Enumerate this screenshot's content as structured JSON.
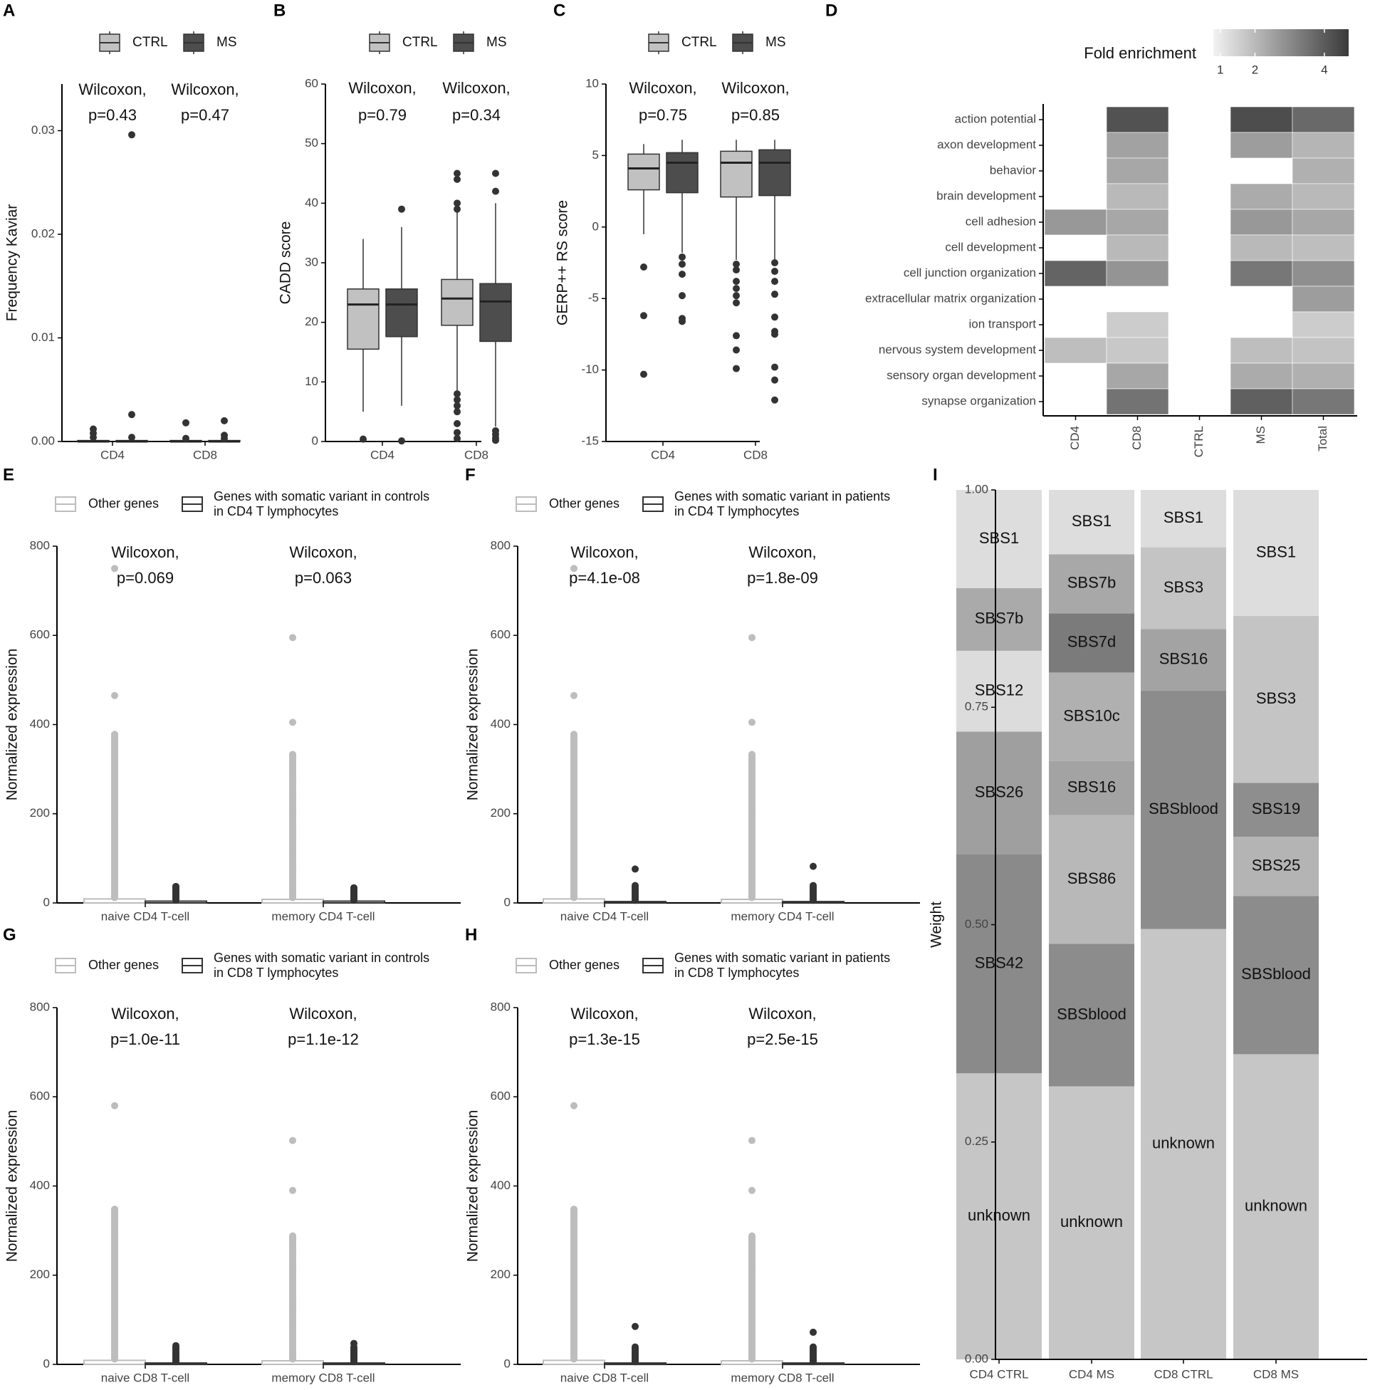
{
  "colors": {
    "ctrl": "#c1c1c1",
    "ms": "#4d4d4d",
    "other_genes": "#bdbdbd",
    "somatic": "#333333",
    "axis": "#000000"
  },
  "chart_data": [
    {
      "panel": "A",
      "type": "boxplot",
      "title": "",
      "xlabel": "",
      "ylabel": "Frequency Kaviar",
      "ylim": [
        0,
        0.0345
      ],
      "yticks": [
        "0.00",
        "0.01",
        "0.02",
        "0.03"
      ],
      "ytick_values": [
        0,
        0.01,
        0.02,
        0.03
      ],
      "categories": [
        "CD4",
        "CD8"
      ],
      "legend": [
        "CTRL",
        "MS"
      ],
      "legend_position": "top",
      "annotations": [
        [
          "Wilcoxon,",
          "p=0.43"
        ],
        [
          "Wilcoxon,",
          "p=0.47"
        ]
      ],
      "series": [
        {
          "name": "CTRL",
          "boxes": [
            {
              "q1": 0,
              "med": 0,
              "q3": 0.0001,
              "wlo": 0,
              "whi": 0.0002,
              "outliers": [
                0.0012,
                0.0008,
                0.0004
              ]
            },
            {
              "q1": 0,
              "med": 0,
              "q3": 0.0001,
              "wlo": 0,
              "whi": 0.0002,
              "outliers": [
                0.0018,
                0.0003
              ]
            }
          ]
        },
        {
          "name": "MS",
          "boxes": [
            {
              "q1": 0,
              "med": 0,
              "q3": 0.0001,
              "wlo": 0,
              "whi": 0.0002,
              "outliers": [
                0.0296,
                0.0026,
                0.0004
              ]
            },
            {
              "q1": 0,
              "med": 0,
              "q3": 0.0001,
              "wlo": 0,
              "whi": 0.0002,
              "outliers": [
                0.002,
                0.0006,
                0.0003
              ]
            }
          ]
        }
      ]
    },
    {
      "panel": "B",
      "type": "boxplot",
      "title": "",
      "xlabel": "",
      "ylabel": "CADD score",
      "ylim": [
        0,
        60
      ],
      "yticks": [
        "0",
        "10",
        "20",
        "30",
        "40",
        "50",
        "60"
      ],
      "ytick_values": [
        0,
        10,
        20,
        30,
        40,
        50,
        60
      ],
      "categories": [
        "CD4",
        "CD8"
      ],
      "legend": [
        "CTRL",
        "MS"
      ],
      "legend_position": "top",
      "annotations": [
        [
          "Wilcoxon,",
          "p=0.79"
        ],
        [
          "Wilcoxon,",
          "p=0.34"
        ]
      ],
      "series": [
        {
          "name": "CTRL",
          "boxes": [
            {
              "q1": 15.5,
              "med": 23,
              "q3": 25.6,
              "wlo": 5,
              "whi": 34,
              "outliers": [
                0.4
              ]
            },
            {
              "q1": 19.5,
              "med": 24,
              "q3": 27.2,
              "wlo": 8.2,
              "whi": 38.5,
              "outliers": [
                45,
                44,
                40,
                39,
                8,
                7,
                6,
                5,
                3,
                1.5,
                0.5
              ]
            }
          ]
        },
        {
          "name": "MS",
          "boxes": [
            {
              "q1": 17.6,
              "med": 23,
              "q3": 25.6,
              "wlo": 6,
              "whi": 36,
              "outliers": [
                39,
                0.1
              ]
            },
            {
              "q1": 16.8,
              "med": 23.5,
              "q3": 26.5,
              "wlo": 2.5,
              "whi": 40,
              "outliers": [
                45,
                42,
                1.8,
                1.2,
                0.6,
                0.2
              ]
            }
          ]
        }
      ]
    },
    {
      "panel": "C",
      "type": "boxplot",
      "title": "",
      "xlabel": "",
      "ylabel": "GERP++ RS score",
      "ylim": [
        -15,
        10
      ],
      "yticks": [
        "-15",
        "-10",
        "-5",
        "0",
        "5",
        "10"
      ],
      "ytick_values": [
        -15,
        -10,
        -5,
        0,
        5,
        10
      ],
      "categories": [
        "CD4",
        "CD8"
      ],
      "legend": [
        "CTRL",
        "MS"
      ],
      "legend_position": "top",
      "annotations": [
        [
          "Wilcoxon,",
          "p=0.75"
        ],
        [
          "Wilcoxon,",
          "p=0.85"
        ]
      ],
      "series": [
        {
          "name": "CTRL",
          "boxes": [
            {
              "q1": 2.6,
              "med": 4.1,
              "q3": 5.1,
              "wlo": -0.5,
              "whi": 5.8,
              "outliers": [
                -2.8,
                -6.2,
                -10.3
              ]
            },
            {
              "q1": 2.1,
              "med": 4.5,
              "q3": 5.3,
              "wlo": -2.3,
              "whi": 6.1,
              "outliers": [
                -2.6,
                -3,
                -3.8,
                -4.3,
                -4.8,
                -5.3,
                -7.6,
                -8.6,
                -9.9
              ]
            }
          ]
        },
        {
          "name": "MS",
          "boxes": [
            {
              "q1": 2.4,
              "med": 4.5,
              "q3": 5.2,
              "wlo": -1.8,
              "whi": 6.1,
              "outliers": [
                -2.1,
                -2.6,
                -3.3,
                -4.8,
                -6.4,
                -6.6
              ]
            },
            {
              "q1": 2.2,
              "med": 4.5,
              "q3": 5.4,
              "wlo": -2.3,
              "whi": 6.1,
              "outliers": [
                -2.5,
                -3.1,
                -3.8,
                -4.7,
                -6.3,
                -7.3,
                -7.5,
                -9.8,
                -10.7,
                -12.1
              ]
            }
          ]
        }
      ]
    },
    {
      "panel": "D",
      "type": "heatmap",
      "title": "",
      "legend_title": "Fold enrichment",
      "legend_ticks": [
        "1",
        "2",
        "4"
      ],
      "legend_tick_values": [
        1,
        2,
        4
      ],
      "value_range": [
        0.8,
        4.7
      ],
      "columns": [
        "CD4",
        "CD8",
        "CTRL",
        "MS",
        "Total"
      ],
      "rows": [
        "action potential",
        "axon development",
        "behavior",
        "brain development",
        "cell adhesion",
        "cell development",
        "cell junction organization",
        "extracellular matrix organization",
        "ion transport",
        "nervous system development",
        "sensory organ development",
        "synapse organization"
      ],
      "values": [
        [
          null,
          4.2,
          null,
          4.3,
          3.7
        ],
        [
          null,
          2.5,
          null,
          2.6,
          2.1
        ],
        [
          null,
          2.4,
          null,
          null,
          2.2
        ],
        [
          null,
          2.0,
          null,
          2.3,
          2.0
        ],
        [
          2.7,
          2.4,
          null,
          2.7,
          2.4
        ],
        [
          null,
          2.0,
          null,
          2.0,
          1.9
        ],
        [
          3.8,
          2.8,
          null,
          3.4,
          2.9
        ],
        [
          null,
          null,
          null,
          null,
          2.6
        ],
        [
          null,
          1.6,
          null,
          null,
          1.6
        ],
        [
          1.9,
          1.7,
          null,
          1.9,
          1.8
        ],
        [
          null,
          2.4,
          null,
          2.3,
          2.2
        ],
        [
          null,
          3.5,
          null,
          3.9,
          3.4
        ]
      ]
    },
    {
      "panel": "E",
      "type": "boxplot",
      "title": "",
      "xlabel": "",
      "ylabel": "Normalized expression",
      "ylim": [
        0,
        800
      ],
      "yticks": [
        "0",
        "200",
        "400",
        "600",
        "800"
      ],
      "ytick_values": [
        0,
        200,
        400,
        600,
        800
      ],
      "categories": [
        "naive CD4 T-cell",
        "memory CD4 T-cell"
      ],
      "legend": [
        "Other genes",
        "Genes with somatic variant in controls in CD4 T lymphocytes"
      ],
      "legend_position": "top",
      "annotations": [
        [
          "Wilcoxon,",
          "p=0.069"
        ],
        [
          "Wilcoxon,",
          "p=0.063"
        ]
      ],
      "series": [
        {
          "name": "Other genes",
          "max_outlier": [
            750,
            595
          ],
          "dense_top": [
            380,
            335
          ],
          "scattered_points": [
            [
              465
            ],
            [
              405
            ]
          ],
          "sample_cap": [
            9,
            8
          ]
        },
        {
          "name": "Genes with somatic variant in controls in CD4 T lymphocytes",
          "max_outlier": [
            37,
            34
          ],
          "sample_cap": [
            4,
            4
          ]
        }
      ]
    },
    {
      "panel": "F",
      "type": "boxplot",
      "title": "",
      "xlabel": "",
      "ylabel": "Normalized expression",
      "ylim": [
        0,
        800
      ],
      "yticks": [
        "0",
        "200",
        "400",
        "600",
        "800"
      ],
      "ytick_values": [
        0,
        200,
        400,
        600,
        800
      ],
      "categories": [
        "naive CD4 T-cell",
        "memory CD4 T-cell"
      ],
      "legend": [
        "Other genes",
        "Genes with somatic variant in patients in CD4 T lymphocytes"
      ],
      "legend_position": "top",
      "annotations": [
        [
          "Wilcoxon,",
          "p=4.1e-08"
        ],
        [
          "Wilcoxon,",
          "p=1.8e-09"
        ]
      ],
      "series": [
        {
          "name": "Other genes",
          "max_outlier": [
            750,
            595
          ],
          "dense_top": [
            380,
            335
          ],
          "scattered_points": [
            [
              465
            ],
            [
              405
            ]
          ],
          "sample_cap": [
            9,
            8
          ]
        },
        {
          "name": "Genes with somatic variant in patients in CD4 T lymphocytes",
          "max_outlier": [
            76,
            82
          ],
          "sample_cap": [
            3,
            3
          ]
        }
      ]
    },
    {
      "panel": "G",
      "type": "boxplot",
      "title": "",
      "xlabel": "",
      "ylabel": "Normalized expression",
      "ylim": [
        0,
        800
      ],
      "yticks": [
        "0",
        "200",
        "400",
        "600",
        "800"
      ],
      "ytick_values": [
        0,
        200,
        400,
        600,
        800
      ],
      "categories": [
        "naive CD8 T-cell",
        "memory CD8 T-cell"
      ],
      "legend": [
        "Other genes",
        "Genes with somatic variant in controls in CD8 T lymphocytes"
      ],
      "legend_position": "top",
      "annotations": [
        [
          "Wilcoxon,",
          "p=1.0e-11"
        ],
        [
          "Wilcoxon,",
          "p=1.1e-12"
        ]
      ],
      "series": [
        {
          "name": "Other genes",
          "max_outlier": [
            580,
            502
          ],
          "dense_top": [
            350,
            290
          ],
          "scattered_points": [
            [],
            [
              390
            ]
          ],
          "sample_cap": [
            9,
            8
          ]
        },
        {
          "name": "Genes with somatic variant in controls in CD8 T lymphocytes",
          "max_outlier": [
            42,
            47
          ],
          "sample_cap": [
            3,
            3
          ]
        }
      ]
    },
    {
      "panel": "H",
      "type": "boxplot",
      "title": "",
      "xlabel": "",
      "ylabel": "Normalized expression",
      "ylim": [
        0,
        800
      ],
      "yticks": [
        "0",
        "200",
        "400",
        "600",
        "800"
      ],
      "ytick_values": [
        0,
        200,
        400,
        600,
        800
      ],
      "categories": [
        "naive CD8 T-cell",
        "memory CD8 T-cell"
      ],
      "legend": [
        "Other genes",
        "Genes with somatic variant in patients in CD8 T lymphocytes"
      ],
      "legend_position": "top",
      "annotations": [
        [
          "Wilcoxon,",
          "p=1.3e-15"
        ],
        [
          "Wilcoxon,",
          "p=2.5e-15"
        ]
      ],
      "series": [
        {
          "name": "Other genes",
          "max_outlier": [
            580,
            502
          ],
          "dense_top": [
            350,
            290
          ],
          "scattered_points": [
            [],
            [
              390
            ]
          ],
          "sample_cap": [
            9,
            8
          ]
        },
        {
          "name": "Genes with somatic variant in patients in CD8 T lymphocytes",
          "max_outlier": [
            85,
            72
          ],
          "sample_cap": [
            3,
            3
          ]
        }
      ]
    },
    {
      "panel": "I",
      "type": "stacked_bar",
      "title": "",
      "xlabel": "",
      "ylabel": "Weight",
      "ylim": [
        0,
        1
      ],
      "yticks": [
        "0.00",
        "0.25",
        "0.50",
        "0.75",
        "1.00"
      ],
      "ytick_values": [
        0,
        0.25,
        0.5,
        0.75,
        1.0
      ],
      "categories": [
        "CD4 CTRL",
        "CD4 MS",
        "CD8 CTRL",
        "CD8 MS"
      ],
      "stacks": [
        [
          {
            "label": "unknown",
            "value": 0.329,
            "shade": "#c6c6c6"
          },
          {
            "label": "SBS42",
            "value": 0.252,
            "shade": "#8a8a8a"
          },
          {
            "label": "SBS26",
            "value": 0.141,
            "shade": "#9f9f9f"
          },
          {
            "label": "SBS12",
            "value": 0.093,
            "shade": "#dcdcdc"
          },
          {
            "label": "SBS7b",
            "value": 0.072,
            "shade": "#aaaaaa"
          },
          {
            "label": "SBS1",
            "value": 0.113,
            "shade": "#dddddd"
          }
        ],
        [
          {
            "label": "unknown",
            "value": 0.314,
            "shade": "#c6c6c6"
          },
          {
            "label": "SBSblood",
            "value": 0.164,
            "shade": "#8c8c8c"
          },
          {
            "label": "SBS86",
            "value": 0.148,
            "shade": "#b8b8b8"
          },
          {
            "label": "SBS16",
            "value": 0.062,
            "shade": "#a3a3a3"
          },
          {
            "label": "SBS10c",
            "value": 0.102,
            "shade": "#b0b0b0"
          },
          {
            "label": "SBS7d",
            "value": 0.068,
            "shade": "#7b7b7b"
          },
          {
            "label": "SBS7b",
            "value": 0.068,
            "shade": "#a8a8a8"
          },
          {
            "label": "SBS1",
            "value": 0.074,
            "shade": "#dddddd"
          }
        ],
        [
          {
            "label": "unknown",
            "value": 0.495,
            "shade": "#c6c6c6"
          },
          {
            "label": "SBSblood",
            "value": 0.274,
            "shade": "#8c8c8c"
          },
          {
            "label": "SBS16",
            "value": 0.071,
            "shade": "#a3a3a3"
          },
          {
            "label": "SBS3",
            "value": 0.094,
            "shade": "#c4c4c4"
          },
          {
            "label": "SBS1",
            "value": 0.066,
            "shade": "#dddddd"
          }
        ],
        [
          {
            "label": "unknown",
            "value": 0.351,
            "shade": "#c6c6c6"
          },
          {
            "label": "SBSblood",
            "value": 0.182,
            "shade": "#8c8c8c"
          },
          {
            "label": "SBS25",
            "value": 0.068,
            "shade": "#b4b4b4"
          },
          {
            "label": "SBS19",
            "value": 0.062,
            "shade": "#8e8e8e"
          },
          {
            "label": "SBS3",
            "value": 0.192,
            "shade": "#c4c4c4"
          },
          {
            "label": "SBS1",
            "value": 0.145,
            "shade": "#dddddd"
          }
        ]
      ]
    }
  ]
}
